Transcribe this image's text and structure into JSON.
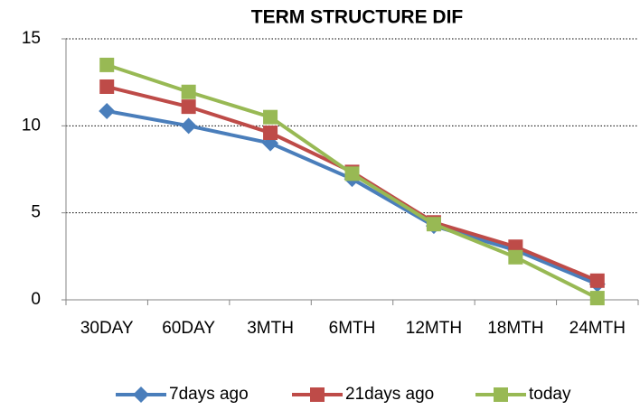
{
  "chart_data": {
    "type": "line",
    "title": "TERM STRUCTURE DIF",
    "categories": [
      "30DAY",
      "60DAY",
      "3MTH",
      "6MTH",
      "12MTH",
      "18MTH",
      "24MTH"
    ],
    "series": [
      {
        "name": "7days ago",
        "color": "#4a7ebb",
        "marker": "diamond",
        "values": [
          10.85,
          10.0,
          9.0,
          6.95,
          4.25,
          2.85,
          0.9
        ]
      },
      {
        "name": "21days ago",
        "color": "#be4b48",
        "marker": "square",
        "values": [
          12.25,
          11.1,
          9.6,
          7.35,
          4.45,
          3.05,
          1.1
        ]
      },
      {
        "name": "today",
        "color": "#98b954",
        "marker": "square",
        "values": [
          13.5,
          11.95,
          10.5,
          7.25,
          4.35,
          2.45,
          0.1
        ]
      }
    ],
    "ylim": [
      0,
      15
    ],
    "yticks": [
      0,
      5,
      10,
      15
    ],
    "grid": true,
    "legend": "bottom"
  }
}
